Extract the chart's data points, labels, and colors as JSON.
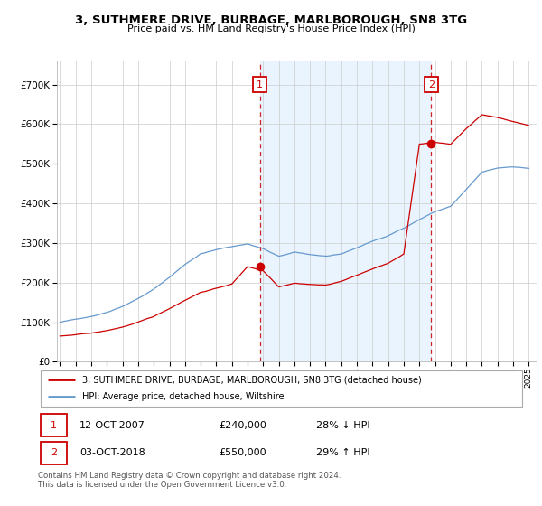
{
  "title": "3, SUTHMERE DRIVE, BURBAGE, MARLBOROUGH, SN8 3TG",
  "subtitle": "Price paid vs. HM Land Registry's House Price Index (HPI)",
  "legend_line1": "3, SUTHMERE DRIVE, BURBAGE, MARLBOROUGH, SN8 3TG (detached house)",
  "legend_line2": "HPI: Average price, detached house, Wiltshire",
  "sale1_date": "12-OCT-2007",
  "sale1_price": "£240,000",
  "sale1_hpi": "28% ↓ HPI",
  "sale2_date": "03-OCT-2018",
  "sale2_price": "£550,000",
  "sale2_hpi": "29% ↑ HPI",
  "footer": "Contains HM Land Registry data © Crown copyright and database right 2024.\nThis data is licensed under the Open Government Licence v3.0.",
  "red_color": "#cc0000",
  "blue_color": "#6699cc",
  "shade_color": "#ddeeff",
  "sale1_x": 2007.78,
  "sale1_y": 240000,
  "sale2_x": 2018.75,
  "sale2_y": 550000,
  "ylim": [
    0,
    760000
  ],
  "xlim": [
    1994.8,
    2025.5
  ]
}
